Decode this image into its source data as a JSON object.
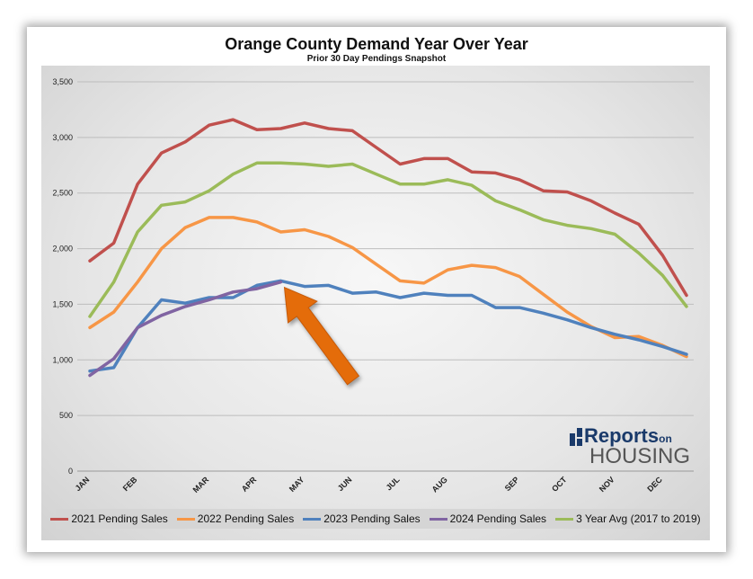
{
  "chart_data": {
    "type": "line",
    "title": "Orange County Demand Year Over Year",
    "subtitle": "Prior 30 Day Pendings Snapshot",
    "xlabel": "",
    "ylabel": "",
    "ylim": [
      0,
      3500
    ],
    "yticks": [
      0,
      500,
      1000,
      1500,
      2000,
      2500,
      3000,
      3500
    ],
    "ytick_labels": [
      "0",
      "500",
      "1,000",
      "1,500",
      "2,000",
      "2,500",
      "3,000",
      "3,500"
    ],
    "month_labels": [
      "JAN",
      "FEB",
      "MAR",
      "APR",
      "MAY",
      "JUN",
      "JUL",
      "AUG",
      "SEP",
      "OCT",
      "NOV",
      "DEC"
    ],
    "month_positions": [
      0,
      2,
      5,
      7,
      9,
      11,
      13,
      15,
      18,
      20,
      22,
      24
    ],
    "x_max": 25,
    "grid": true,
    "legend_position": "bottom",
    "series": [
      {
        "name": "2021 Pending Sales",
        "color": "#c0504d",
        "values": [
          1890,
          2050,
          2580,
          2860,
          2960,
          3110,
          3160,
          3070,
          3080,
          3130,
          3080,
          3060,
          2910,
          2760,
          2810,
          2810,
          2690,
          2680,
          2620,
          2520,
          2510,
          2430,
          2320,
          2220,
          1940,
          1580
        ]
      },
      {
        "name": "2022 Pending Sales",
        "color": "#f79646",
        "values": [
          1290,
          1430,
          1700,
          2000,
          2190,
          2280,
          2280,
          2240,
          2150,
          2170,
          2110,
          2010,
          1860,
          1710,
          1690,
          1810,
          1850,
          1830,
          1750,
          1590,
          1430,
          1300,
          1200,
          1210,
          1130,
          1030
        ]
      },
      {
        "name": "2023 Pending Sales",
        "color": "#4f81bd",
        "values": [
          900,
          930,
          1290,
          1540,
          1510,
          1560,
          1560,
          1670,
          1710,
          1660,
          1670,
          1600,
          1610,
          1560,
          1600,
          1580,
          1580,
          1470,
          1470,
          1420,
          1360,
          1290,
          1230,
          1180,
          1120,
          1050
        ]
      },
      {
        "name": "2024 Pending Sales",
        "color": "#8064a2",
        "values": [
          860,
          1010,
          1290,
          1400,
          1480,
          1540,
          1610,
          1640,
          1700
        ]
      },
      {
        "name": "3 Year Avg (2017 to 2019)",
        "color": "#9bbb59",
        "values": [
          1390,
          1700,
          2150,
          2390,
          2420,
          2520,
          2670,
          2770,
          2770,
          2760,
          2740,
          2760,
          2670,
          2580,
          2580,
          2620,
          2570,
          2430,
          2350,
          2260,
          2210,
          2180,
          2130,
          1960,
          1760,
          1480
        ]
      }
    ],
    "annotation": {
      "type": "arrow",
      "color": "#e46c0a",
      "points_to_series": "2024 Pending Sales",
      "points_to_index": 8
    }
  },
  "logo": {
    "line1": "Reports",
    "line1_small": "on",
    "line2": "HOUSING"
  }
}
